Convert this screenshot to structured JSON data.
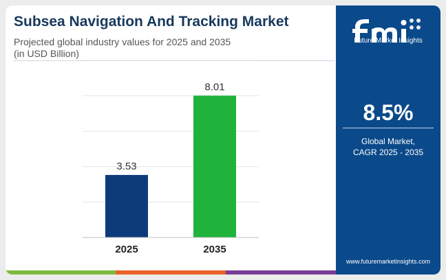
{
  "header": {
    "title": "Subsea Navigation And Tracking Market",
    "subtitle_line1": "Projected global industry values for 2025 and 2035",
    "subtitle_line2": "(in USD Billion)"
  },
  "chart_data": {
    "type": "bar",
    "categories": [
      "2025",
      "2035"
    ],
    "values": [
      3.53,
      8.01
    ],
    "value_labels": [
      "3.53",
      "8.01"
    ],
    "ylim": [
      0,
      10
    ],
    "grid": true,
    "bar_colors": [
      "#0d3b7a",
      "#1fb33c"
    ]
  },
  "sidebar": {
    "logo_name": "fmi-logo-icon",
    "logo_text": "Future Market Insights",
    "cagr_value": "8.5%",
    "cagr_label_line1": "Global Market,",
    "cagr_label_line2": "CAGR 2025 - 2035",
    "website": "www.futuremarketinsights.com",
    "background_color": "#0b4a8a"
  },
  "footer_stripe_colors": [
    "#7dbb3f",
    "#e8622a",
    "#7a3d97",
    "#0b4a8a"
  ]
}
